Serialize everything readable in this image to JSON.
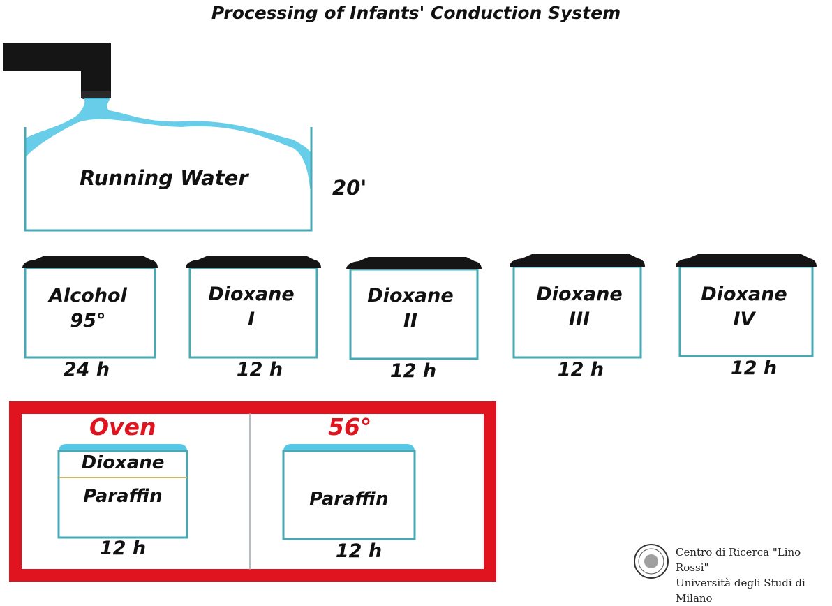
{
  "title": "Processing of Infants' Conduction System",
  "water": {
    "label": "Running Water",
    "duration": "20'"
  },
  "containers": [
    {
      "line1": "Alcohol",
      "line2": "95°",
      "duration": "24 h"
    },
    {
      "line1": "Dioxane",
      "line2": "I",
      "duration": "12 h"
    },
    {
      "line1": "Dioxane",
      "line2": "II",
      "duration": "12 h"
    },
    {
      "line1": "Dioxane",
      "line2": "III",
      "duration": "12 h"
    },
    {
      "line1": "Dioxane",
      "line2": "IV",
      "duration": "12 h"
    }
  ],
  "oven": {
    "label": "Oven",
    "temperature": "56°",
    "left_top": "Dioxane",
    "left_bottom": "Paraffin",
    "left_duration": "12 h",
    "right_label": "Paraffin",
    "right_duration": "12 h"
  },
  "footer": {
    "line1": "Centro di Ricerca \"Lino Rossi\"",
    "line2": "Università degli Studi di Milano"
  },
  "colors": {
    "water": "#56c8e6",
    "outline": "#48a9b4",
    "lid": "#151515",
    "oven": "#e0141e"
  }
}
